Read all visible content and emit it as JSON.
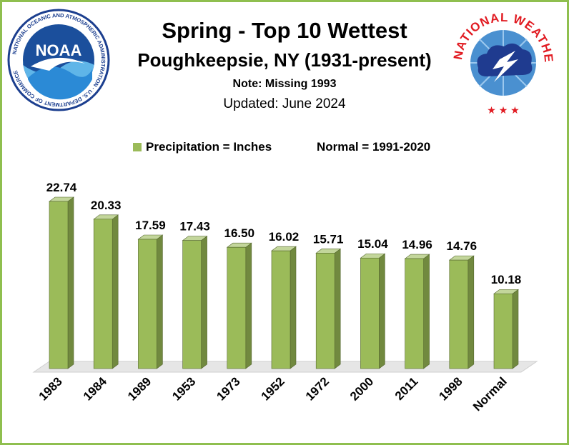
{
  "header": {
    "title": "Spring - Top 10 Wettest",
    "subtitle": "Poughkeepsie, NY (1931-present)",
    "note": "Note: Missing 1993",
    "updated": "Updated:  June 2024"
  },
  "legend": {
    "series_label": "Precipitation = Inches",
    "normal_label": "Normal = 1991-2020"
  },
  "logos": {
    "noaa": {
      "name": "NOAA",
      "ring_text": "NATIONAL OCEANIC AND ATMOSPHERIC ADMINISTRATION · U.S. DEPARTMENT OF COMMERCE"
    },
    "nws": {
      "ring_text": "NATIONAL WEATHER SERVICE"
    }
  },
  "colors": {
    "bar_front": "#9bbb59",
    "bar_side": "#71893f",
    "bar_top": "#c3d69b",
    "border": "#8fbf4f",
    "floor": "#e6e6e6"
  },
  "chart_data": {
    "type": "bar",
    "categories": [
      "1983",
      "1984",
      "1989",
      "1953",
      "1973",
      "1952",
      "1972",
      "2000",
      "2011",
      "1998",
      "Normal"
    ],
    "values": [
      22.74,
      20.33,
      17.59,
      17.43,
      16.5,
      16.02,
      15.71,
      15.04,
      14.96,
      14.76,
      10.18
    ],
    "data_labels": [
      "22.74",
      "20.33",
      "17.59",
      "17.43",
      "16.50",
      "16.02",
      "15.71",
      "15.04",
      "14.96",
      "14.76",
      "10.18"
    ],
    "ylim": [
      0,
      25
    ],
    "grid": false,
    "legend_position": "top"
  }
}
